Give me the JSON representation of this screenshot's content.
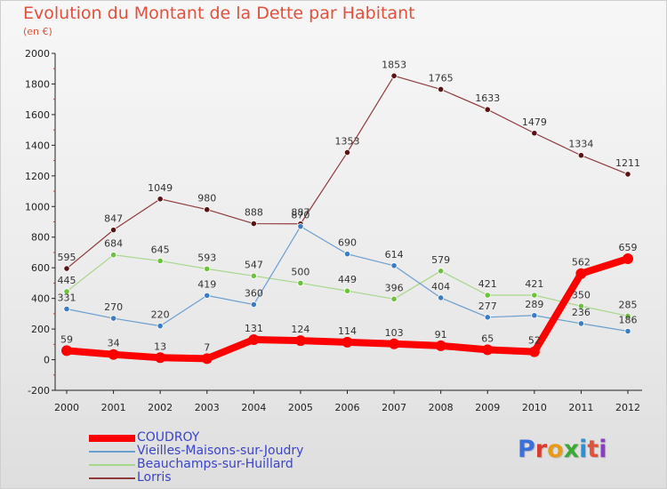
{
  "title": "Evolution du Montant de la Dette par Habitant",
  "subtitle": "(en €)",
  "brand": {
    "text": "Proxiti",
    "colors": [
      "#3b6fd9",
      "#d93c2e",
      "#e89b1a",
      "#3aaa35",
      "#2d8fd5",
      "#e0523a",
      "#8a3cc4"
    ]
  },
  "chart_data": {
    "type": "line",
    "title": "Evolution du Montant de la Dette par Habitant",
    "subtitle": "(en €)",
    "xlabel": "",
    "ylabel": "",
    "x": [
      "2000",
      "2001",
      "2002",
      "2003",
      "2004",
      "2005",
      "2006",
      "2007",
      "2008",
      "2009",
      "2010",
      "2011",
      "2012"
    ],
    "ylim": [
      -200,
      2000
    ],
    "yticks": [
      "-200",
      "0",
      "200",
      "400",
      "600",
      "800",
      "1000",
      "1200",
      "1400",
      "1600",
      "1800",
      "2000"
    ],
    "grid": false,
    "legend_position": "bottom-left",
    "series": [
      {
        "name": "COUDROY",
        "color": "#ff0000",
        "marker_color": "#ff0000",
        "emphasis": true,
        "values": [
          59,
          34,
          13,
          7,
          131,
          124,
          114,
          103,
          91,
          65,
          52,
          562,
          659
        ],
        "labels": [
          "59",
          "34",
          "13",
          "7",
          "131",
          "124",
          "114",
          "103",
          "91",
          "65",
          "52",
          "562",
          "659"
        ]
      },
      {
        "name": "Vieilles-Maisons-sur-Joudry",
        "color": "#6a9fd0",
        "marker_color": "#3a7dc4",
        "emphasis": false,
        "values": [
          331,
          270,
          220,
          419,
          360,
          870,
          690,
          614,
          404,
          277,
          289,
          236,
          186
        ],
        "labels": [
          "331",
          "270",
          "220",
          "419",
          "360",
          "870",
          "690",
          "614",
          "404",
          "277",
          "289",
          "236",
          "186"
        ]
      },
      {
        "name": "Beauchamps-sur-Huillard",
        "color": "#a6d88a",
        "marker_color": "#6cc23c",
        "emphasis": false,
        "values": [
          445,
          684,
          645,
          593,
          547,
          500,
          449,
          396,
          579,
          421,
          421,
          350,
          285
        ],
        "labels": [
          "445",
          "684",
          "645",
          "593",
          "547",
          "500",
          "449",
          "396",
          "579",
          "421",
          "421",
          "350",
          "285"
        ]
      },
      {
        "name": "Lorris",
        "color": "#8e3a3a",
        "marker_color": "#5a1414",
        "emphasis": false,
        "values": [
          595,
          847,
          1049,
          980,
          888,
          887,
          1353,
          1853,
          1765,
          1633,
          1479,
          1334,
          1211
        ],
        "labels": [
          "595",
          "847",
          "1049",
          "980",
          "888",
          "887",
          "1353",
          "1853",
          "1765",
          "1633",
          "1479",
          "1334",
          "1211"
        ]
      }
    ]
  }
}
